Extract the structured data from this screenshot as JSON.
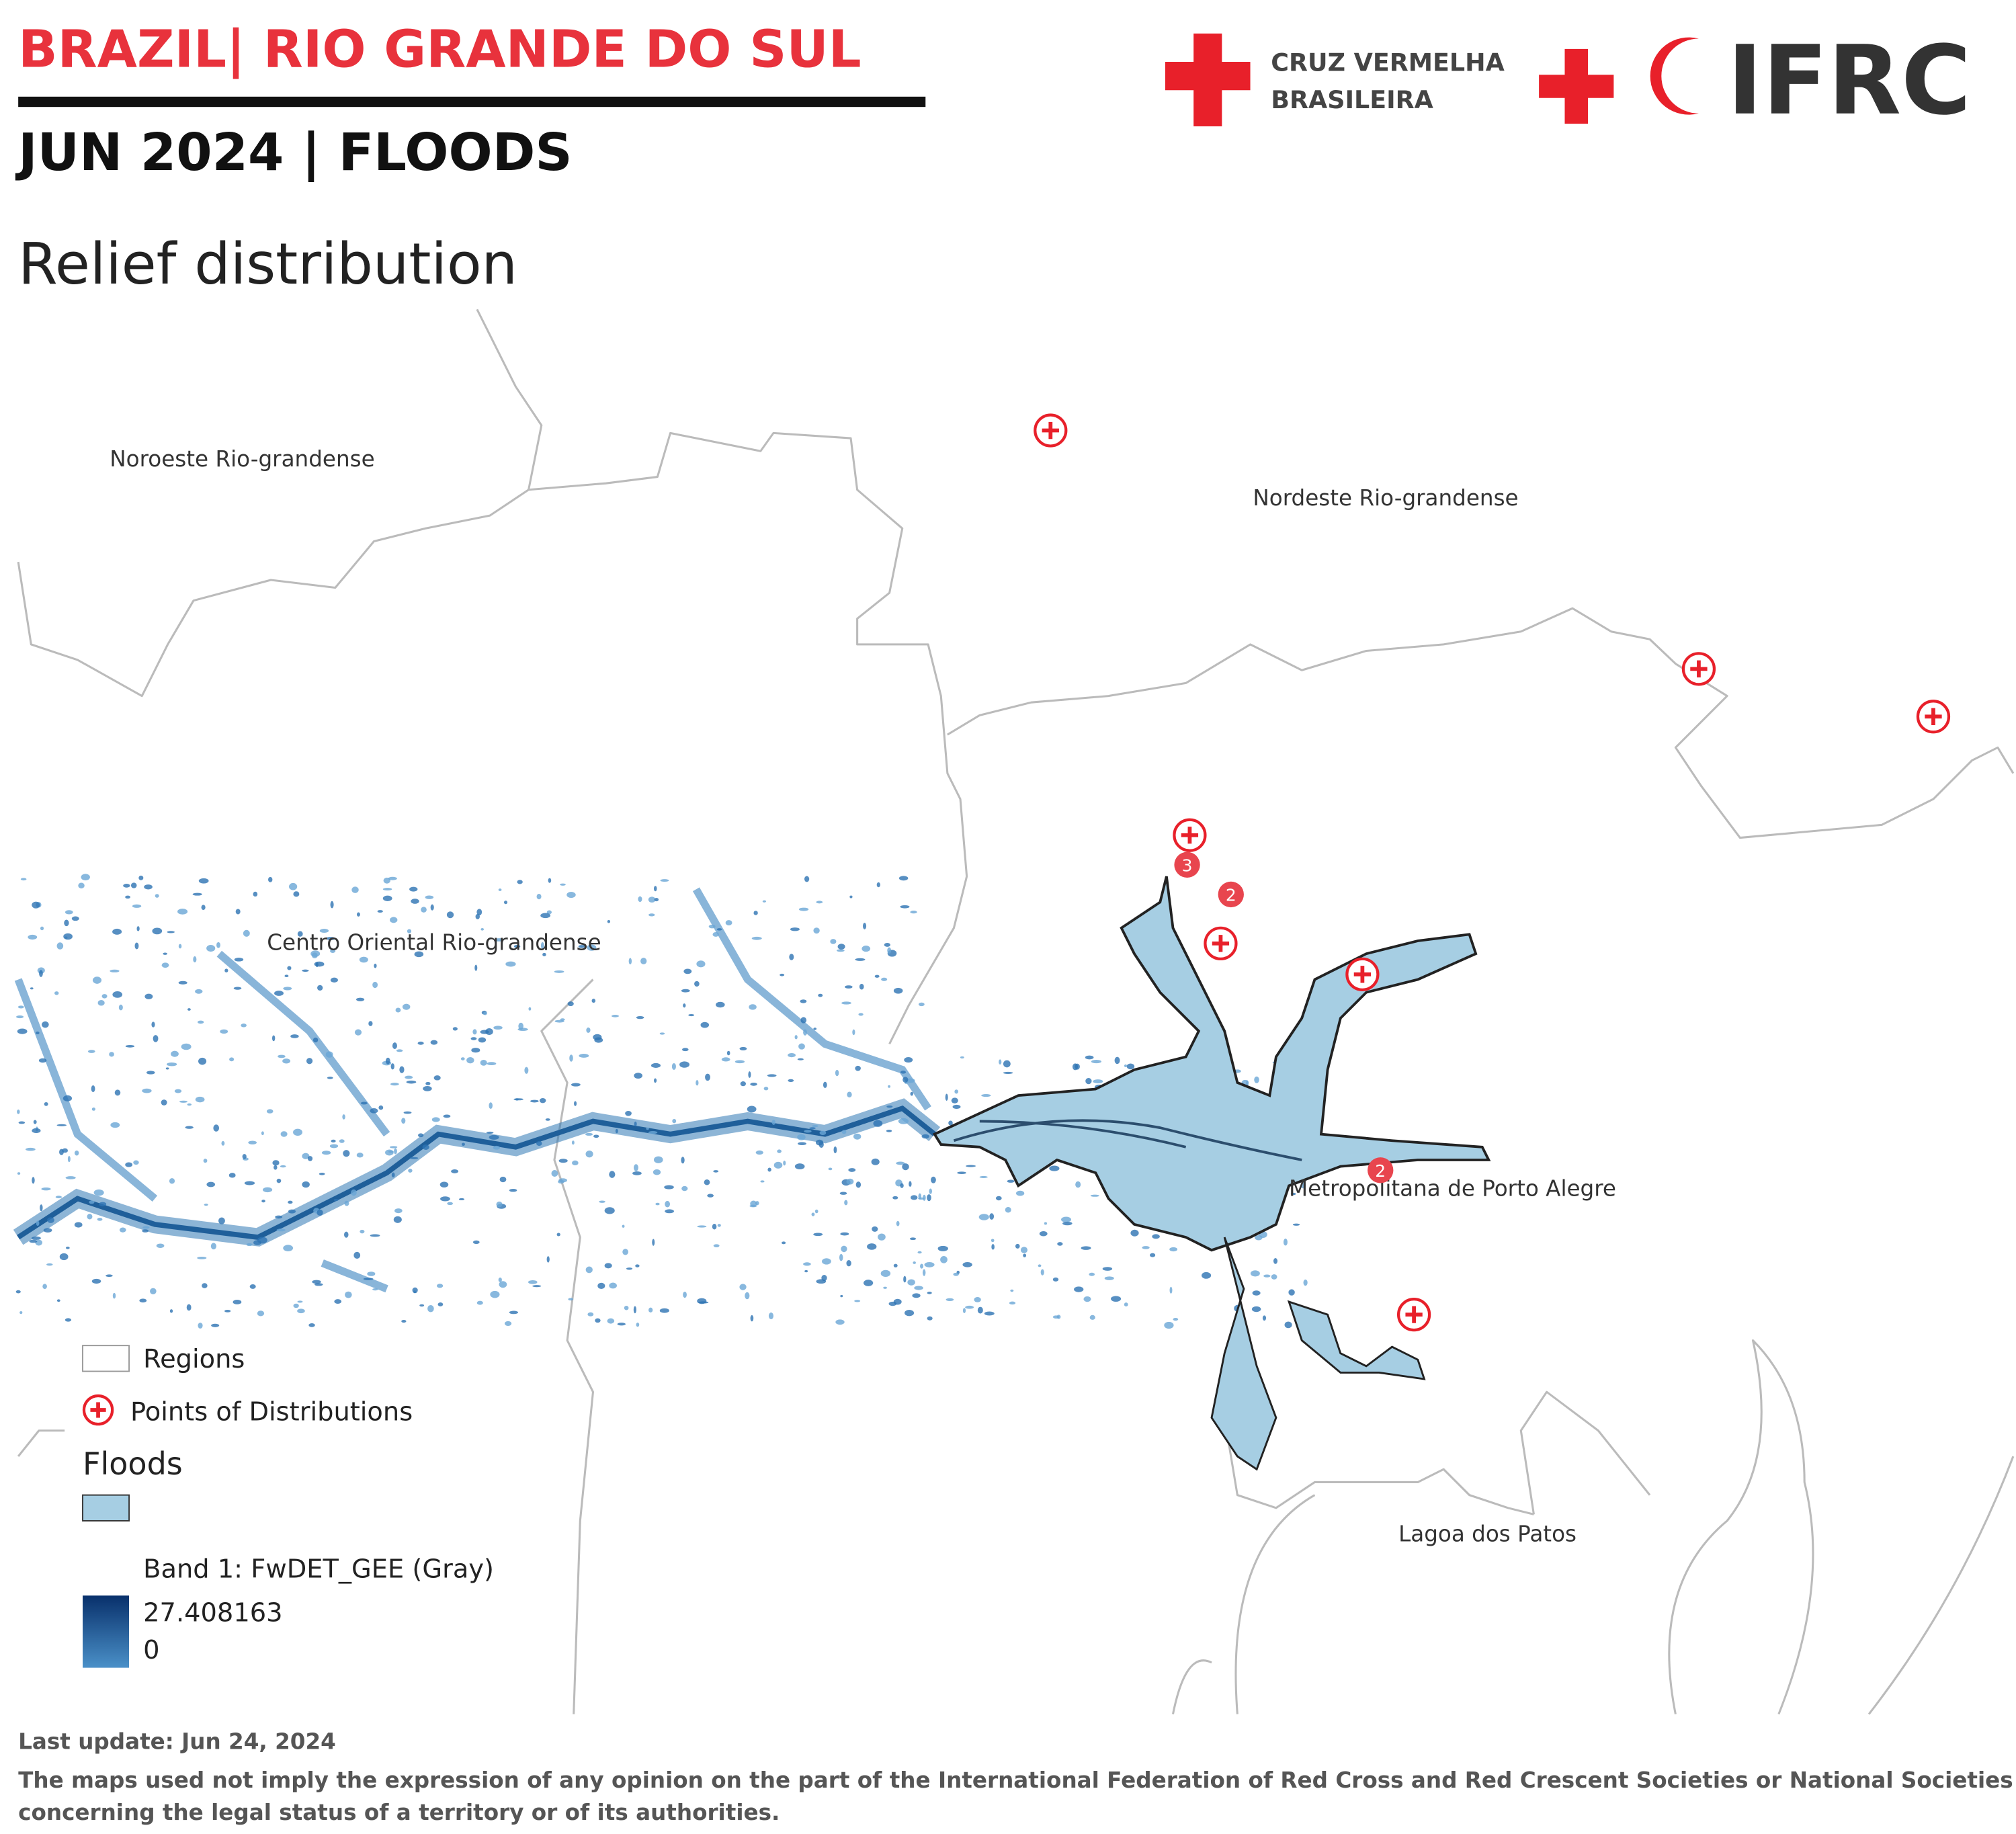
{
  "header": {
    "title": "BRAZIL| RIO GRANDE DO SUL",
    "subtitle": "JUN 2024 | FLOODS",
    "map_title": "Relief distribution"
  },
  "logos": {
    "cruz_line1": "CRUZ VERMELHA",
    "cruz_line2": "BRASILEIRA",
    "ifrc": "IFRC"
  },
  "map": {
    "labels": [
      "Noroeste Rio-grandense",
      "Nordeste Rio-grandense",
      "Centro Oriental Rio-grandense",
      "Metropolitana de Porto Alegre",
      "Lagoa dos Patos"
    ],
    "clusters": [
      3,
      2,
      2
    ]
  },
  "legend": {
    "regions": "Regions",
    "points": "Points of Distributions",
    "floods": "Floods",
    "band": "Band 1: FwDET_GEE (Gray)",
    "band_max": "27.408163",
    "band_min": "0"
  },
  "footer": {
    "last_update": "Last update: Jun 24, 2024",
    "disclaimer": "The maps used not imply the expression of any opinion on the part of the International Federation of Red Cross and Red Crescent Societies or National Societies concerning the legal status of a territory or of its authorities."
  }
}
